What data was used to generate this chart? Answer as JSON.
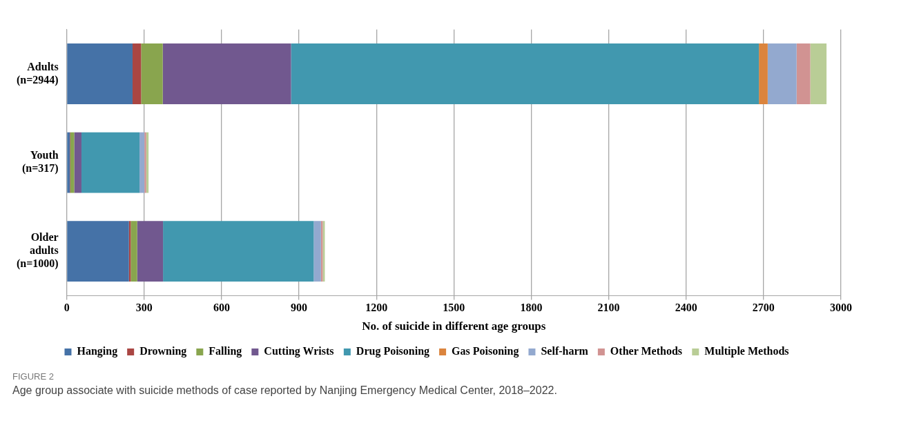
{
  "chart_data": {
    "type": "bar",
    "orientation": "horizontal",
    "stacked": true,
    "xlabel": "No. of suicide in different age groups",
    "categories": [
      "Adults (n=2944)",
      "Youth (n=317)",
      "Older adults (n=1000)"
    ],
    "series": [
      {
        "name": "Hanging",
        "color": "#4572a7",
        "values": [
          255,
          12,
          241
        ]
      },
      {
        "name": "Drowning",
        "color": "#aa4643",
        "values": [
          33,
          2,
          7
        ]
      },
      {
        "name": "Falling",
        "color": "#89a54e",
        "values": [
          84,
          15,
          25
        ]
      },
      {
        "name": "Cutting Wrists",
        "color": "#71588f",
        "values": [
          497,
          28,
          100
        ]
      },
      {
        "name": "Drug Poisoning",
        "color": "#4198af",
        "values": [
          1813,
          225,
          584
        ]
      },
      {
        "name": "Gas Poisoning",
        "color": "#db843d",
        "values": [
          34,
          null,
          null
        ]
      },
      {
        "name": "Self-harm",
        "color": "#93a9cf",
        "values": [
          112,
          19,
          28
        ]
      },
      {
        "name": "Other Methods",
        "color": "#d19392",
        "values": [
          53,
          7,
          7
        ]
      },
      {
        "name": "Multiple Methods",
        "color": "#b9cd96",
        "values": [
          63,
          9,
          8
        ]
      }
    ],
    "xlim": [
      0,
      3000
    ],
    "xticks": [
      0,
      300,
      600,
      900,
      1200,
      1500,
      1800,
      2100,
      2400,
      2700,
      3000
    ],
    "grid": "x",
    "legend": "bottom",
    "annotations": [
      "FIGURE 2",
      "Age group associate with suicide methods of case reported by Nanjing Emergency Medical Center, 2018–2022."
    ]
  }
}
